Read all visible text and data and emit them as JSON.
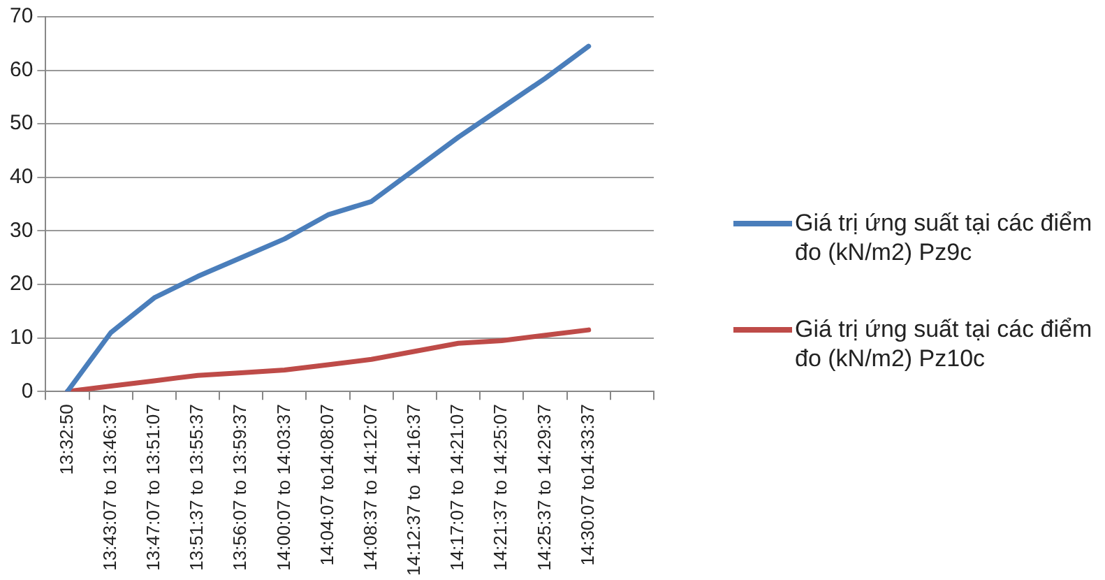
{
  "chart_data": {
    "type": "line",
    "categories": [
      "13:32:50",
      "13:43:07 to 13:46:37",
      "13:47:07 to 13:51:07",
      "13:51:37 to 13:55:37",
      "13:56:07 to 13:59:37",
      "14:00:07 to 14:03:37",
      "14:04:07 to14:08:07",
      "14:08:37 to 14:12:07",
      "14:12:37 to  14:16:37",
      "14:17:07 to 14:21:07",
      "14:21:37 to 14:25:07",
      "14:25:37 to 14:29:37",
      "14:30:07 to14:33:37",
      null
    ],
    "series": [
      {
        "name": "Giá trị ứng suất tại các điểm đo (kN/m2) Pz9c",
        "color": "#4a7ebb",
        "values": [
          0,
          11,
          17.5,
          21.5,
          25,
          28.5,
          33,
          35.5,
          41.5,
          47.5,
          53,
          58.5,
          64.5,
          null
        ]
      },
      {
        "name": "Giá trị ứng suất tại các điểm đo (kN/m2) Pz10c",
        "color": "#be4b48",
        "values": [
          0,
          1,
          2,
          3,
          3.5,
          4,
          5,
          6,
          7.5,
          9,
          9.5,
          10.5,
          11.5,
          null
        ]
      }
    ],
    "ylim": [
      0,
      70
    ],
    "yticks": [
      0,
      10,
      20,
      30,
      40,
      50,
      60,
      70
    ],
    "grid": "y",
    "legend": "right",
    "marker": "none",
    "line_style": "solid"
  }
}
